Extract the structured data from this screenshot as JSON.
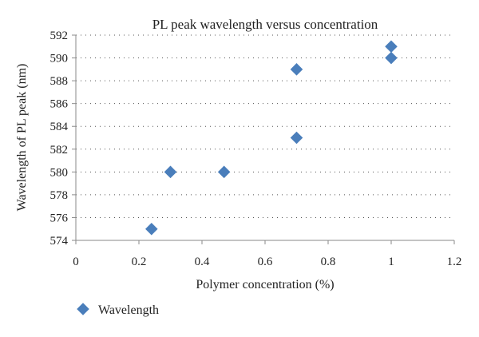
{
  "chart_data": {
    "type": "scatter",
    "title": "PL peak wavelength versus concentration",
    "xlabel": "Polymer concentration (%)",
    "ylabel": "Wavelength of PL peak (nm)",
    "xlim": [
      0,
      1.2
    ],
    "ylim": [
      574,
      592
    ],
    "x_ticks": [
      "0",
      "0.2",
      "0.4",
      "0.6",
      "0.8",
      "1",
      "1.2"
    ],
    "y_ticks": [
      "574",
      "576",
      "578",
      "580",
      "582",
      "584",
      "586",
      "588",
      "590",
      "592"
    ],
    "grid": "horizontal dotted",
    "legend_position": "bottom-left",
    "series": [
      {
        "name": "Wavelength",
        "color": "#4a7ebb",
        "marker": "diamond",
        "points": [
          {
            "x": 0.24,
            "y": 575
          },
          {
            "x": 0.3,
            "y": 580
          },
          {
            "x": 0.47,
            "y": 580
          },
          {
            "x": 0.7,
            "y": 583
          },
          {
            "x": 0.7,
            "y": 589
          },
          {
            "x": 1.0,
            "y": 590
          },
          {
            "x": 1.0,
            "y": 591
          }
        ]
      }
    ]
  }
}
